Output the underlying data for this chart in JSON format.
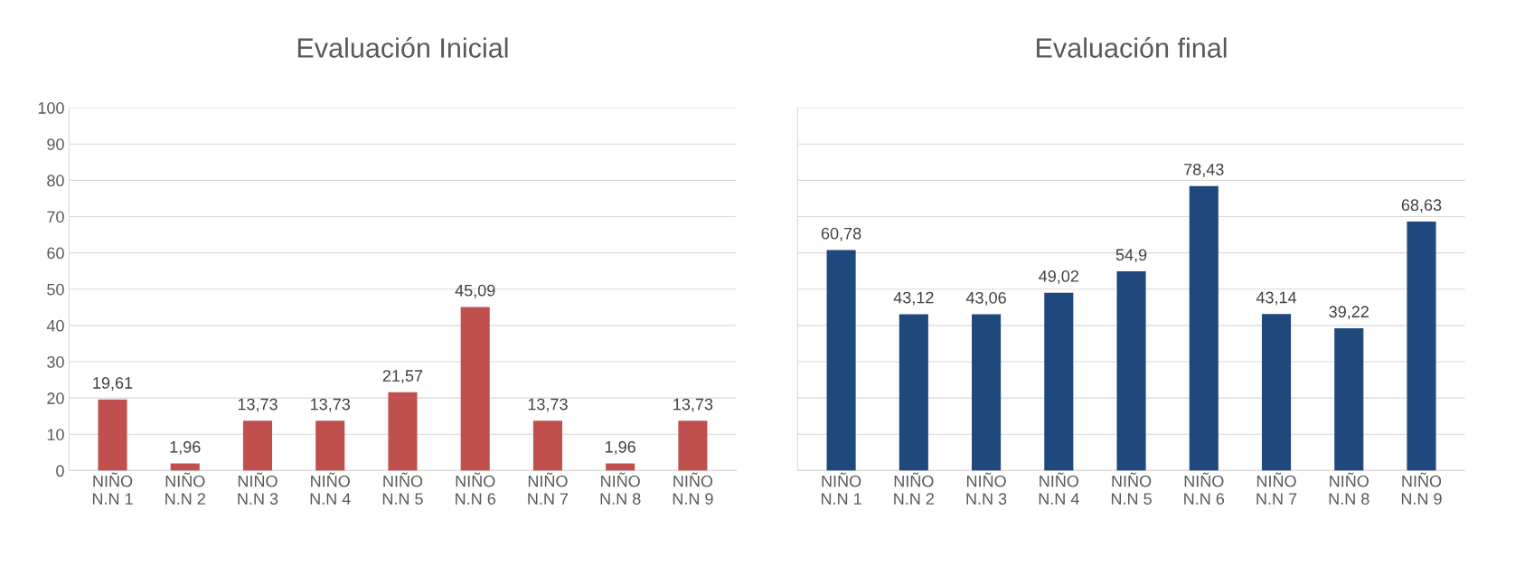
{
  "chart_data": [
    {
      "type": "bar",
      "title": "Evaluación Inicial",
      "categories": [
        "NIÑO\nN.N 1",
        "NIÑO\nN.N 2",
        "NIÑO\nN.N 3",
        "NIÑO\nN.N 4",
        "NIÑO\nN.N 5",
        "NIÑO\nN.N 6",
        "NIÑO\nN.N 7",
        "NIÑO\nN.N 8",
        "NIÑO\nN.N 9"
      ],
      "values": [
        19.61,
        1.96,
        13.73,
        13.73,
        21.57,
        45.09,
        13.73,
        1.96,
        13.73
      ],
      "value_labels": [
        "19,61",
        "1,96",
        "13,73",
        "13,73",
        "21,57",
        "45,09",
        "13,73",
        "1,96",
        "13,73"
      ],
      "color": "#c0504d",
      "ylim": [
        0,
        100
      ],
      "yticks": [
        0,
        10,
        20,
        30,
        40,
        50,
        60,
        70,
        80,
        90,
        100
      ],
      "grid": "y"
    },
    {
      "type": "bar",
      "title": "Evaluación final",
      "categories": [
        "NIÑO\nN.N 1",
        "NIÑO\nN.N 2",
        "NIÑO\nN.N 3",
        "NIÑO\nN.N 4",
        "NIÑO\nN.N 5",
        "NIÑO\nN.N 6",
        "NIÑO\nN.N 7",
        "NIÑO\nN.N 8",
        "NIÑO\nN.N 9"
      ],
      "values": [
        60.78,
        43.12,
        43.06,
        49.02,
        54.9,
        78.43,
        43.14,
        39.22,
        68.63
      ],
      "value_labels": [
        "60,78",
        "43,12",
        "43,06",
        "49,02",
        "54,9",
        "78,43",
        "43,14",
        "39,22",
        "68,63"
      ],
      "color": "#1f497d",
      "ylim": [
        0,
        100
      ],
      "yticks": [
        {
          "value": 0,
          "label": null
        },
        {
          "value": 10,
          "label": null
        },
        {
          "value": 20,
          "label": null
        },
        {
          "value": 30,
          "label": null
        },
        {
          "value": 40,
          "label": null
        },
        {
          "value": 50,
          "label": null
        },
        {
          "value": 60,
          "label": null
        },
        {
          "value": 70,
          "label": null
        },
        {
          "value": 80,
          "label": null
        },
        {
          "value": 90,
          "label": null
        },
        {
          "value": 100,
          "label": null
        }
      ],
      "grid": "y",
      "tick_labels": "x"
    }
  ]
}
